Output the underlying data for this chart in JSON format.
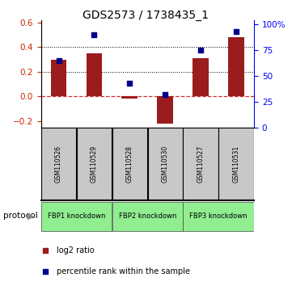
{
  "title": "GDS2573 / 1738435_1",
  "samples": [
    "GSM110526",
    "GSM110529",
    "GSM110528",
    "GSM110530",
    "GSM110527",
    "GSM110531"
  ],
  "log2_ratio": [
    0.3,
    0.35,
    -0.02,
    -0.22,
    0.31,
    0.48
  ],
  "percentile_rank": [
    65,
    90,
    43,
    32,
    75,
    93
  ],
  "ylim_left": [
    -0.25,
    0.62
  ],
  "ylim_right": [
    0,
    104
  ],
  "yticks_left": [
    -0.2,
    0.0,
    0.2,
    0.4,
    0.6
  ],
  "yticks_right": [
    0,
    25,
    50,
    75,
    100
  ],
  "ytick_labels_right": [
    "0",
    "25",
    "50",
    "75",
    "100%"
  ],
  "bar_color": "#9B1C1C",
  "dot_color": "#00008B",
  "zero_line_color": "#CC3333",
  "title_fontsize": 10,
  "bar_width": 0.45,
  "protocol_label": "protocol",
  "legend_bar_label": "log2 ratio",
  "legend_dot_label": "percentile rank within the sample",
  "protocol_groups": [
    {
      "label": "FBP1 knockdown",
      "start": 0,
      "end": 1
    },
    {
      "label": "FBP2 knockdown",
      "start": 2,
      "end": 3
    },
    {
      "label": "FBP3 knockdown",
      "start": 4,
      "end": 5
    }
  ]
}
